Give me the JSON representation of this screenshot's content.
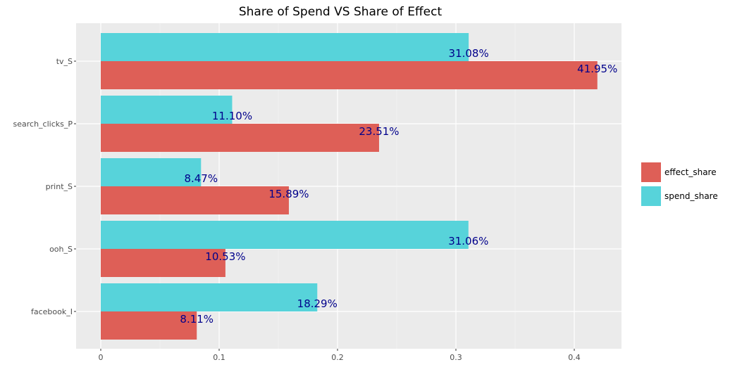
{
  "chart_data": {
    "type": "bar",
    "orientation": "horizontal",
    "title": "Share of Spend VS Share of Effect",
    "xlabel": "",
    "ylabel": "",
    "xlim": [
      -0.021,
      0.44
    ],
    "x_ticks": [
      0,
      0.1,
      0.2,
      0.3,
      0.4
    ],
    "x_tick_labels": [
      "0",
      "0.1",
      "0.2",
      "0.3",
      "0.4"
    ],
    "grid": true,
    "legend_position": "right",
    "categories": [
      "tv_S",
      "search_clicks_P",
      "print_S",
      "ooh_S",
      "facebook_I"
    ],
    "series": [
      {
        "name": "effect_share",
        "color": "#de5f57",
        "values": [
          0.4195,
          0.2351,
          0.1589,
          0.1053,
          0.0811
        ],
        "labels": [
          "41.95%",
          "23.51%",
          "15.89%",
          "10.53%",
          "8.11%"
        ]
      },
      {
        "name": "spend_share",
        "color": "#57d3da",
        "values": [
          0.3108,
          0.111,
          0.0847,
          0.3106,
          0.1829
        ],
        "labels": [
          "31.08%",
          "11.10%",
          "8.47%",
          "31.06%",
          "18.29%"
        ]
      }
    ],
    "legend": [
      "effect_share",
      "spend_share"
    ],
    "panel_background": "#ebebeb",
    "label_color": "#00008b"
  }
}
